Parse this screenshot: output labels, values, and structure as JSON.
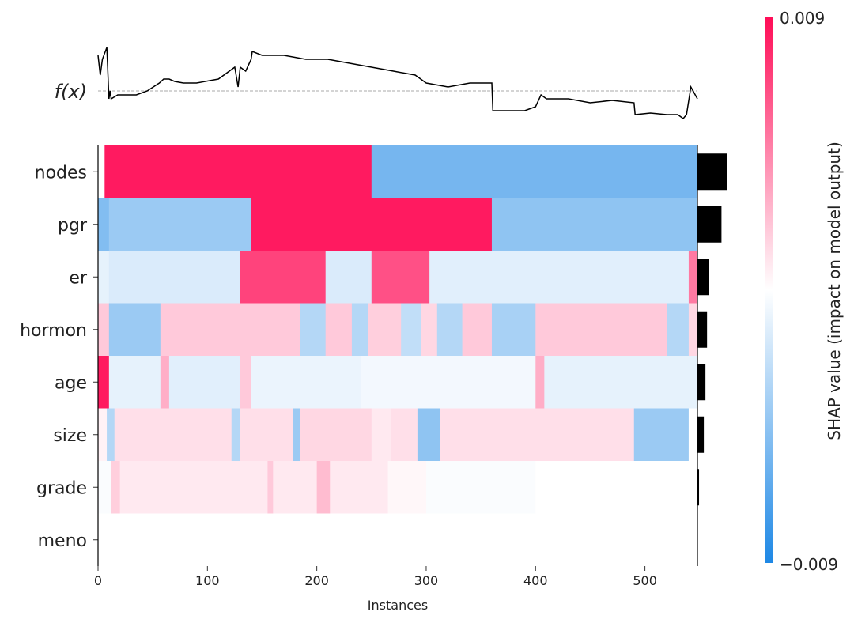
{
  "chart_data": {
    "type": "heatmap",
    "title": "",
    "xlabel": "Instances",
    "xlim": [
      0,
      548
    ],
    "xticks": [
      "0",
      "100",
      "200",
      "300",
      "400",
      "500"
    ],
    "xtick_values": [
      0,
      100,
      200,
      300,
      400,
      500
    ],
    "fx_label": "f(x)",
    "fx_line": {
      "x": [
        0,
        2,
        4,
        8,
        10,
        11,
        12,
        18,
        25,
        35,
        45,
        56,
        60,
        65,
        70,
        78,
        90,
        110,
        125,
        128,
        130,
        135,
        140,
        141,
        150,
        170,
        190,
        210,
        230,
        250,
        270,
        290,
        300,
        320,
        340,
        360,
        361,
        370,
        390,
        400,
        405,
        410,
        430,
        450,
        470,
        490,
        491,
        505,
        520,
        530,
        535,
        538,
        542,
        548
      ],
      "y": [
        0.45,
        0.2,
        0.4,
        0.55,
        -0.1,
        0.0,
        -0.1,
        -0.05,
        -0.05,
        -0.05,
        0.0,
        0.1,
        0.15,
        0.15,
        0.12,
        0.1,
        0.1,
        0.15,
        0.3,
        0.05,
        0.3,
        0.25,
        0.4,
        0.5,
        0.45,
        0.45,
        0.4,
        0.4,
        0.35,
        0.3,
        0.25,
        0.2,
        0.1,
        0.05,
        0.1,
        0.1,
        -0.25,
        -0.25,
        -0.25,
        -0.2,
        -0.05,
        -0.1,
        -0.1,
        -0.15,
        -0.12,
        -0.15,
        -0.3,
        -0.28,
        -0.3,
        -0.3,
        -0.35,
        -0.3,
        0.05,
        -0.1
      ],
      "baseline": 0.0,
      "ylim": [
        -0.4,
        0.6
      ]
    },
    "features": [
      "nodes",
      "pgr",
      "er",
      "hormon",
      "age",
      "size",
      "grade",
      "meno"
    ],
    "heatmap_segments": {
      "nodes": [
        [
          0,
          6,
          0.0
        ],
        [
          6,
          250,
          0.0085
        ],
        [
          250,
          548,
          -0.0055
        ]
      ],
      "pgr": [
        [
          0,
          10,
          -0.005
        ],
        [
          10,
          140,
          -0.004
        ],
        [
          140,
          360,
          0.0085
        ],
        [
          360,
          548,
          -0.0045
        ]
      ],
      "er": [
        [
          0,
          10,
          -0.001
        ],
        [
          10,
          130,
          -0.0015
        ],
        [
          130,
          208,
          0.007
        ],
        [
          208,
          250,
          -0.0015
        ],
        [
          250,
          303,
          0.0065
        ],
        [
          303,
          540,
          -0.0012
        ],
        [
          540,
          548,
          0.005
        ]
      ],
      "hormon": [
        [
          0,
          10,
          0.002
        ],
        [
          10,
          57,
          -0.004
        ],
        [
          57,
          185,
          0.002
        ],
        [
          185,
          208,
          -0.003
        ],
        [
          208,
          232,
          0.002
        ],
        [
          232,
          247,
          -0.003
        ],
        [
          247,
          277,
          0.0018
        ],
        [
          277,
          295,
          -0.0025
        ],
        [
          295,
          310,
          0.0015
        ],
        [
          310,
          333,
          -0.003
        ],
        [
          333,
          360,
          0.002
        ],
        [
          360,
          400,
          -0.0035
        ],
        [
          400,
          520,
          0.002
        ],
        [
          520,
          540,
          -0.003
        ],
        [
          540,
          548,
          0.0015
        ]
      ],
      "age": [
        [
          0,
          10,
          0.0085
        ],
        [
          10,
          57,
          -0.001
        ],
        [
          57,
          65,
          0.003
        ],
        [
          65,
          130,
          -0.0012
        ],
        [
          130,
          140,
          0.002
        ],
        [
          140,
          240,
          -0.0008
        ],
        [
          240,
          400,
          -0.0005
        ],
        [
          400,
          408,
          0.003
        ],
        [
          408,
          548,
          -0.001
        ]
      ],
      "size": [
        [
          0,
          8,
          0.0005
        ],
        [
          8,
          15,
          -0.003
        ],
        [
          15,
          122,
          0.0012
        ],
        [
          122,
          130,
          -0.003
        ],
        [
          130,
          178,
          0.0012
        ],
        [
          178,
          185,
          -0.004
        ],
        [
          185,
          250,
          0.0015
        ],
        [
          250,
          268,
          0.0008
        ],
        [
          268,
          292,
          0.0012
        ],
        [
          292,
          313,
          -0.0045
        ],
        [
          313,
          490,
          0.0012
        ],
        [
          490,
          540,
          -0.004
        ],
        [
          540,
          548,
          0.0
        ]
      ],
      "grade": [
        [
          0,
          12,
          -0.0002
        ],
        [
          12,
          20,
          0.0018
        ],
        [
          20,
          155,
          0.0008
        ],
        [
          155,
          160,
          0.002
        ],
        [
          160,
          200,
          0.0008
        ],
        [
          200,
          212,
          0.0025
        ],
        [
          212,
          265,
          0.0008
        ],
        [
          265,
          300,
          0.0003
        ],
        [
          300,
          400,
          -0.0002
        ],
        [
          400,
          548,
          0.0
        ]
      ],
      "meno": [
        [
          0,
          548,
          0.0
        ]
      ]
    },
    "mean_abs_shap": {
      "nodes": 0.0075,
      "pgr": 0.006,
      "er": 0.0028,
      "hormon": 0.0024,
      "age": 0.002,
      "size": 0.0016,
      "grade": 0.0004,
      "meno": 0.0
    },
    "colorbar": {
      "label": "SHAP value (impact on model output)",
      "max_label": "0.009",
      "min_label": "−0.009",
      "vmin": -0.009,
      "vmax": 0.009,
      "colors": {
        "high": "#ff0d57",
        "mid": "#ffffff",
        "low": "#1e88e5"
      }
    }
  }
}
